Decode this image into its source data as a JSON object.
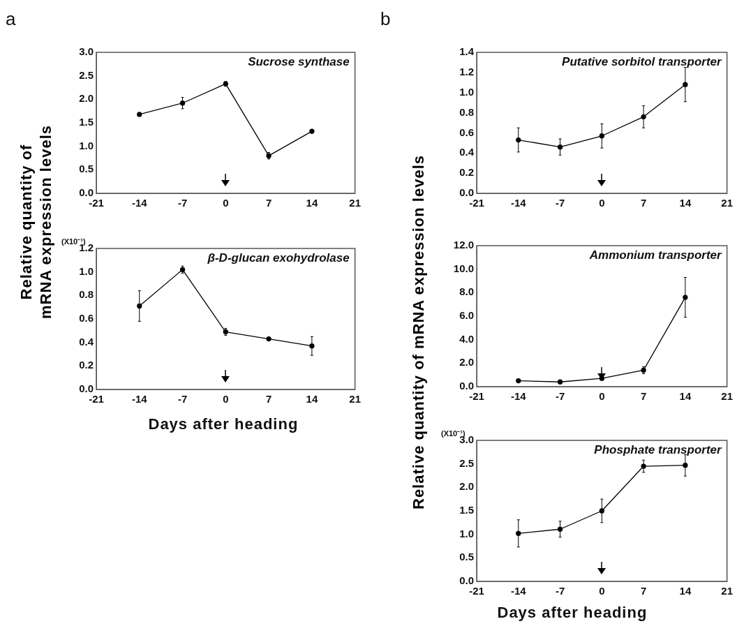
{
  "chart_data": [
    {
      "type": "line",
      "title": "Sucrose synthase",
      "ylabel": "Relative quantity of mRNA expression levels",
      "annotations": [
        "a"
      ],
      "x": [
        -14,
        -7,
        0,
        7,
        14
      ],
      "series": [
        {
          "color": "#000000",
          "values": [
            1.68,
            1.92,
            2.33,
            0.8,
            1.32
          ],
          "errors": [
            null,
            0.12,
            0.05,
            0.07,
            0.04
          ]
        }
      ],
      "xlim": [
        -21,
        21
      ],
      "xticks": [
        -21,
        -14,
        -7,
        0,
        7,
        14,
        21
      ],
      "ylim": [
        0,
        3
      ],
      "yticks": [
        {
          "value": 0,
          "label": "0.0"
        },
        0.5,
        {
          "value": 1,
          "label": "1.0"
        },
        1.5,
        {
          "value": 2,
          "label": "2.0"
        },
        2.5,
        {
          "value": 3,
          "label": "3.0"
        }
      ],
      "grid": false,
      "legend": false,
      "marker": "circle",
      "line_style": "solid"
    },
    {
      "type": "line",
      "title": "β-D-glucan exohydrolase",
      "xlabel": "Days after heading",
      "annotations": [
        "(X10⁻¹)"
      ],
      "x": [
        -14,
        -7,
        0,
        7,
        14
      ],
      "series": [
        {
          "color": "#000000",
          "values": [
            0.71,
            1.02,
            0.49,
            0.43,
            0.37
          ],
          "errors": [
            0.13,
            0.03,
            0.03,
            null,
            0.08
          ]
        }
      ],
      "xlim": [
        -21,
        21
      ],
      "xticks": [
        -21,
        -14,
        -7,
        0,
        7,
        14,
        21
      ],
      "ylim": [
        0,
        1.2
      ],
      "yticks": [
        {
          "value": 0,
          "label": "0.0"
        },
        0.2,
        0.4,
        0.6,
        0.8,
        {
          "value": 1,
          "label": "1.0"
        },
        1.2
      ],
      "grid": false,
      "legend": false,
      "marker": "circle",
      "line_style": "solid"
    },
    {
      "type": "line",
      "title": "Putative sorbitol transporter",
      "ylabel": "Relative quantity of mRNA expression levels",
      "annotations": [
        "b"
      ],
      "x": [
        -14,
        -7,
        0,
        7,
        14
      ],
      "series": [
        {
          "color": "#000000",
          "values": [
            0.53,
            0.46,
            0.57,
            0.76,
            1.08
          ],
          "errors": [
            0.12,
            0.08,
            0.12,
            0.11,
            0.17
          ]
        }
      ],
      "xlim": [
        -21,
        21
      ],
      "xticks": [
        -21,
        -14,
        -7,
        0,
        7,
        14,
        21
      ],
      "ylim": [
        0,
        1.4
      ],
      "yticks": [
        {
          "value": 0,
          "label": "0.0"
        },
        0.2,
        0.4,
        0.6,
        0.8,
        {
          "value": 1,
          "label": "1.0"
        },
        1.2,
        1.4
      ],
      "grid": false,
      "legend": false,
      "marker": "circle",
      "line_style": "solid"
    },
    {
      "type": "line",
      "title": "Ammonium transporter",
      "x": [
        -14,
        -7,
        0,
        7,
        14
      ],
      "series": [
        {
          "color": "#000000",
          "values": [
            0.5,
            0.4,
            0.7,
            1.4,
            7.6
          ],
          "errors": [
            null,
            null,
            null,
            0.3,
            1.7
          ]
        }
      ],
      "xlim": [
        -21,
        21
      ],
      "xticks": [
        -21,
        -14,
        -7,
        0,
        7,
        14,
        21
      ],
      "ylim": [
        0,
        12
      ],
      "yticks": [
        {
          "value": 0,
          "label": "0.0"
        },
        {
          "value": 2,
          "label": "2.0"
        },
        {
          "value": 4,
          "label": "4.0"
        },
        {
          "value": 6,
          "label": "6.0"
        },
        {
          "value": 8,
          "label": "8.0"
        },
        {
          "value": 10,
          "label": "10.0"
        },
        {
          "value": 12,
          "label": "12.0"
        }
      ],
      "grid": false,
      "legend": false,
      "marker": "circle",
      "line_style": "solid"
    },
    {
      "type": "line",
      "title": "Phosphate transporter",
      "xlabel": "Days after heading",
      "annotations": [
        "(X10⁻¹)"
      ],
      "x": [
        -14,
        -7,
        0,
        7,
        14
      ],
      "series": [
        {
          "color": "#000000",
          "values": [
            1.02,
            1.11,
            1.5,
            2.45,
            2.47
          ],
          "errors": [
            0.29,
            0.17,
            0.25,
            0.13,
            0.23
          ]
        }
      ],
      "xlim": [
        -21,
        21
      ],
      "xticks": [
        -21,
        -14,
        -7,
        0,
        7,
        14,
        21
      ],
      "ylim": [
        0,
        3
      ],
      "yticks": [
        {
          "value": 0,
          "label": "0.0"
        },
        0.5,
        {
          "value": 1,
          "label": "1.0"
        },
        1.5,
        {
          "value": 2,
          "label": "2.0"
        },
        2.5,
        {
          "value": 3,
          "label": "3.0"
        }
      ],
      "grid": false,
      "legend": false,
      "marker": "circle",
      "line_style": "solid"
    }
  ]
}
